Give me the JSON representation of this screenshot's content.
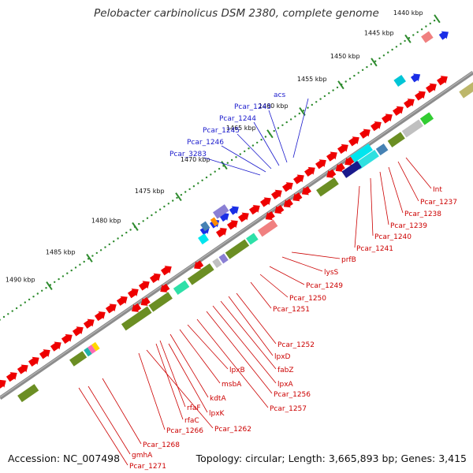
{
  "title": "Pelobacter carbinolicus DSM 2380, complete genome",
  "footer": {
    "accession": "Accession: NC_007498",
    "summary": "Topology: circular; Length: 3,665,893 bp; Genes: 3,415"
  },
  "ticks_kbp": [
    "1440 kbp",
    "1445 kbp",
    "1450 kbp",
    "1455 kbp",
    "1460 kbp",
    "1465 kbp",
    "1470 kbp",
    "1475 kbp",
    "1480 kbp",
    "1485 kbp",
    "1490 kbp"
  ],
  "top_genes": [
    "Pcar_3283",
    "Pcar_1246",
    "Pcar_1245",
    "Pcar_1244",
    "Pcar_1243",
    "acs"
  ],
  "right_genes": [
    "Int",
    "Pcar_1237",
    "Pcar_1238",
    "Pcar_1239",
    "Pcar_1240",
    "Pcar_1241",
    "prfB",
    "lysS",
    "Pcar_1249",
    "Pcar_1250",
    "Pcar_1251",
    "Pcar_1252",
    "lpxD",
    "fabZ",
    "lpxA",
    "Pcar_1256",
    "Pcar_1257",
    "lpxB",
    "msbA",
    "kdtA",
    "rfaF",
    "lpxK",
    "rfaC",
    "Pcar_1262",
    "Pcar_1266",
    "Pcar_1268",
    "gmhA",
    "Pcar_1271"
  ],
  "colors": {
    "backbone": "#8c8c8c",
    "forward_gene": "#ee0000",
    "label_forward": "#1a1acc",
    "label_reverse": "#cc0000",
    "olive": "#6b8e23",
    "cyan": "#2ee0e0",
    "tick_dot": "#2e8b2e"
  }
}
